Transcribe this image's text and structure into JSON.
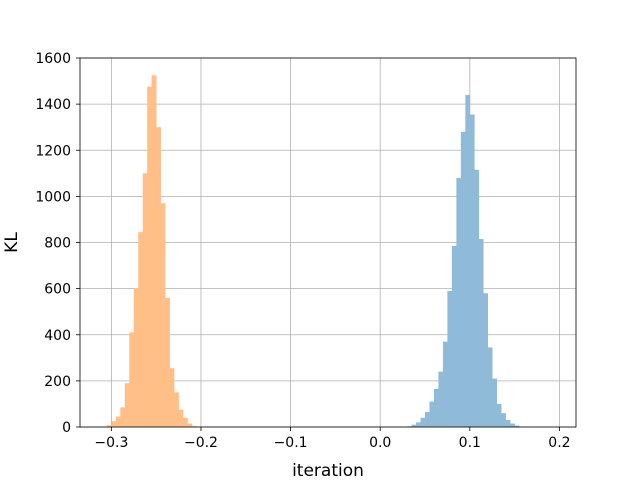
{
  "chart_data": {
    "type": "histogram",
    "xlabel": "iteration",
    "ylabel": "KL",
    "xlim": [
      -0.335,
      0.2185
    ],
    "ylim": [
      0,
      1600
    ],
    "xticks": [
      -0.3,
      -0.2,
      -0.1,
      0.0,
      0.1,
      0.2
    ],
    "xtick_labels": [
      "−0.3",
      "−0.2",
      "−0.1",
      "0.0",
      "0.1",
      "0.2"
    ],
    "yticks": [
      0,
      200,
      400,
      600,
      800,
      1000,
      1200,
      1400,
      1600
    ],
    "ytick_labels": [
      "0",
      "200",
      "400",
      "600",
      "800",
      "1000",
      "1200",
      "1400",
      "1600"
    ],
    "grid": true,
    "bin_width": 0.005,
    "series": [
      {
        "color": "#ffbf86",
        "bin_start": -0.305,
        "values": [
          8,
          25,
          45,
          85,
          190,
          410,
          600,
          845,
          1100,
          1475,
          1525,
          1300,
          970,
          560,
          255,
          150,
          75,
          40,
          15,
          4,
          1
        ]
      },
      {
        "color": "#8fbbd9",
        "bin_start": 0.03,
        "values": [
          3,
          10,
          20,
          40,
          65,
          110,
          165,
          240,
          370,
          590,
          785,
          1080,
          1280,
          1440,
          1355,
          1115,
          815,
          580,
          345,
          210,
          100,
          60,
          30,
          15,
          6,
          2
        ]
      }
    ]
  }
}
